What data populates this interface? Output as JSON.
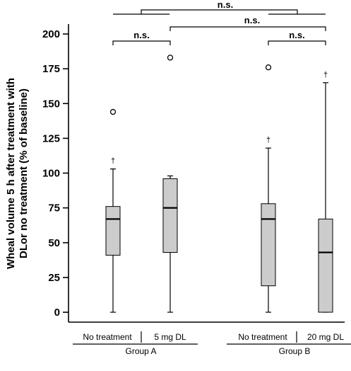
{
  "chart_data": {
    "type": "box",
    "ylabel_lines": [
      "Wheal volume 5 h after treatment with",
      "DLor no treatment (% of baseline)"
    ],
    "ylim": [
      0,
      200
    ],
    "yticks": [
      0,
      25,
      50,
      75,
      100,
      125,
      150,
      175,
      200
    ],
    "categories": [
      "No treatment",
      "5 mg DL",
      "No treatment",
      "20 mg DL"
    ],
    "groups": [
      {
        "label": "Group A",
        "categories": [
          0,
          1
        ]
      },
      {
        "label": "Group B",
        "categories": [
          2,
          3
        ]
      }
    ],
    "boxes": [
      {
        "category": "No treatment",
        "group": "Group A",
        "min": 0,
        "q1": 41,
        "median": 67,
        "q3": 76,
        "max": 103,
        "outliers": [
          144
        ],
        "dagger": true
      },
      {
        "category": "5 mg DL",
        "group": "Group A",
        "min": 0,
        "q1": 43,
        "median": 75,
        "q3": 96,
        "max": 98,
        "outliers": [
          183
        ],
        "dagger": false
      },
      {
        "category": "No treatment",
        "group": "Group B",
        "min": 0,
        "q1": 19,
        "median": 67,
        "q3": 78,
        "max": 118,
        "outliers": [
          176
        ],
        "dagger": true
      },
      {
        "category": "20 mg DL",
        "group": "Group B",
        "min": 0,
        "q1": 0,
        "median": 43,
        "q3": 67,
        "max": 165,
        "outliers": [],
        "dagger": true
      }
    ],
    "dagger_symbol": "†",
    "significance": [
      {
        "label": "n.s.",
        "from": 0,
        "to": 1
      },
      {
        "label": "n.s.",
        "from": 2,
        "to": 3
      },
      {
        "label": "n.s.",
        "from": 1,
        "to": 3
      },
      {
        "label": "n.s.",
        "from": "Group A",
        "to": "Group B"
      }
    ],
    "box_color": "#cccccc",
    "grid": false
  }
}
